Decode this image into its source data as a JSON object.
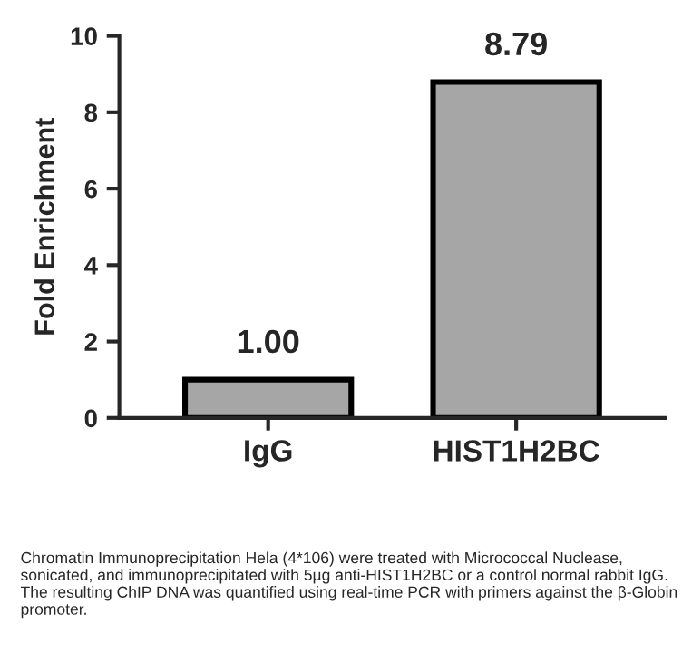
{
  "chart_data": {
    "type": "bar",
    "ylabel": "Fold Enrichment",
    "categories": [
      "IgG",
      "HIST1H2BC"
    ],
    "values": [
      1.0,
      8.79
    ],
    "value_labels": [
      "1.00",
      "8.79"
    ],
    "color": "#a6a6a6",
    "ylim": [
      0,
      10
    ],
    "yticks": [
      0,
      2,
      4,
      6,
      8,
      10
    ],
    "grid": false,
    "annotations": [
      "Chromatin Immunoprecipitation Hela (4*106) were treated with Micrococcal Nuclease, sonicated, and immunoprecipitated with 5µg anti-HIST1H2BC or a control normal rabbit IgG. The resulting ChIP DNA was quantified using real-time PCR with primers against the β-Globin promoter."
    ]
  }
}
